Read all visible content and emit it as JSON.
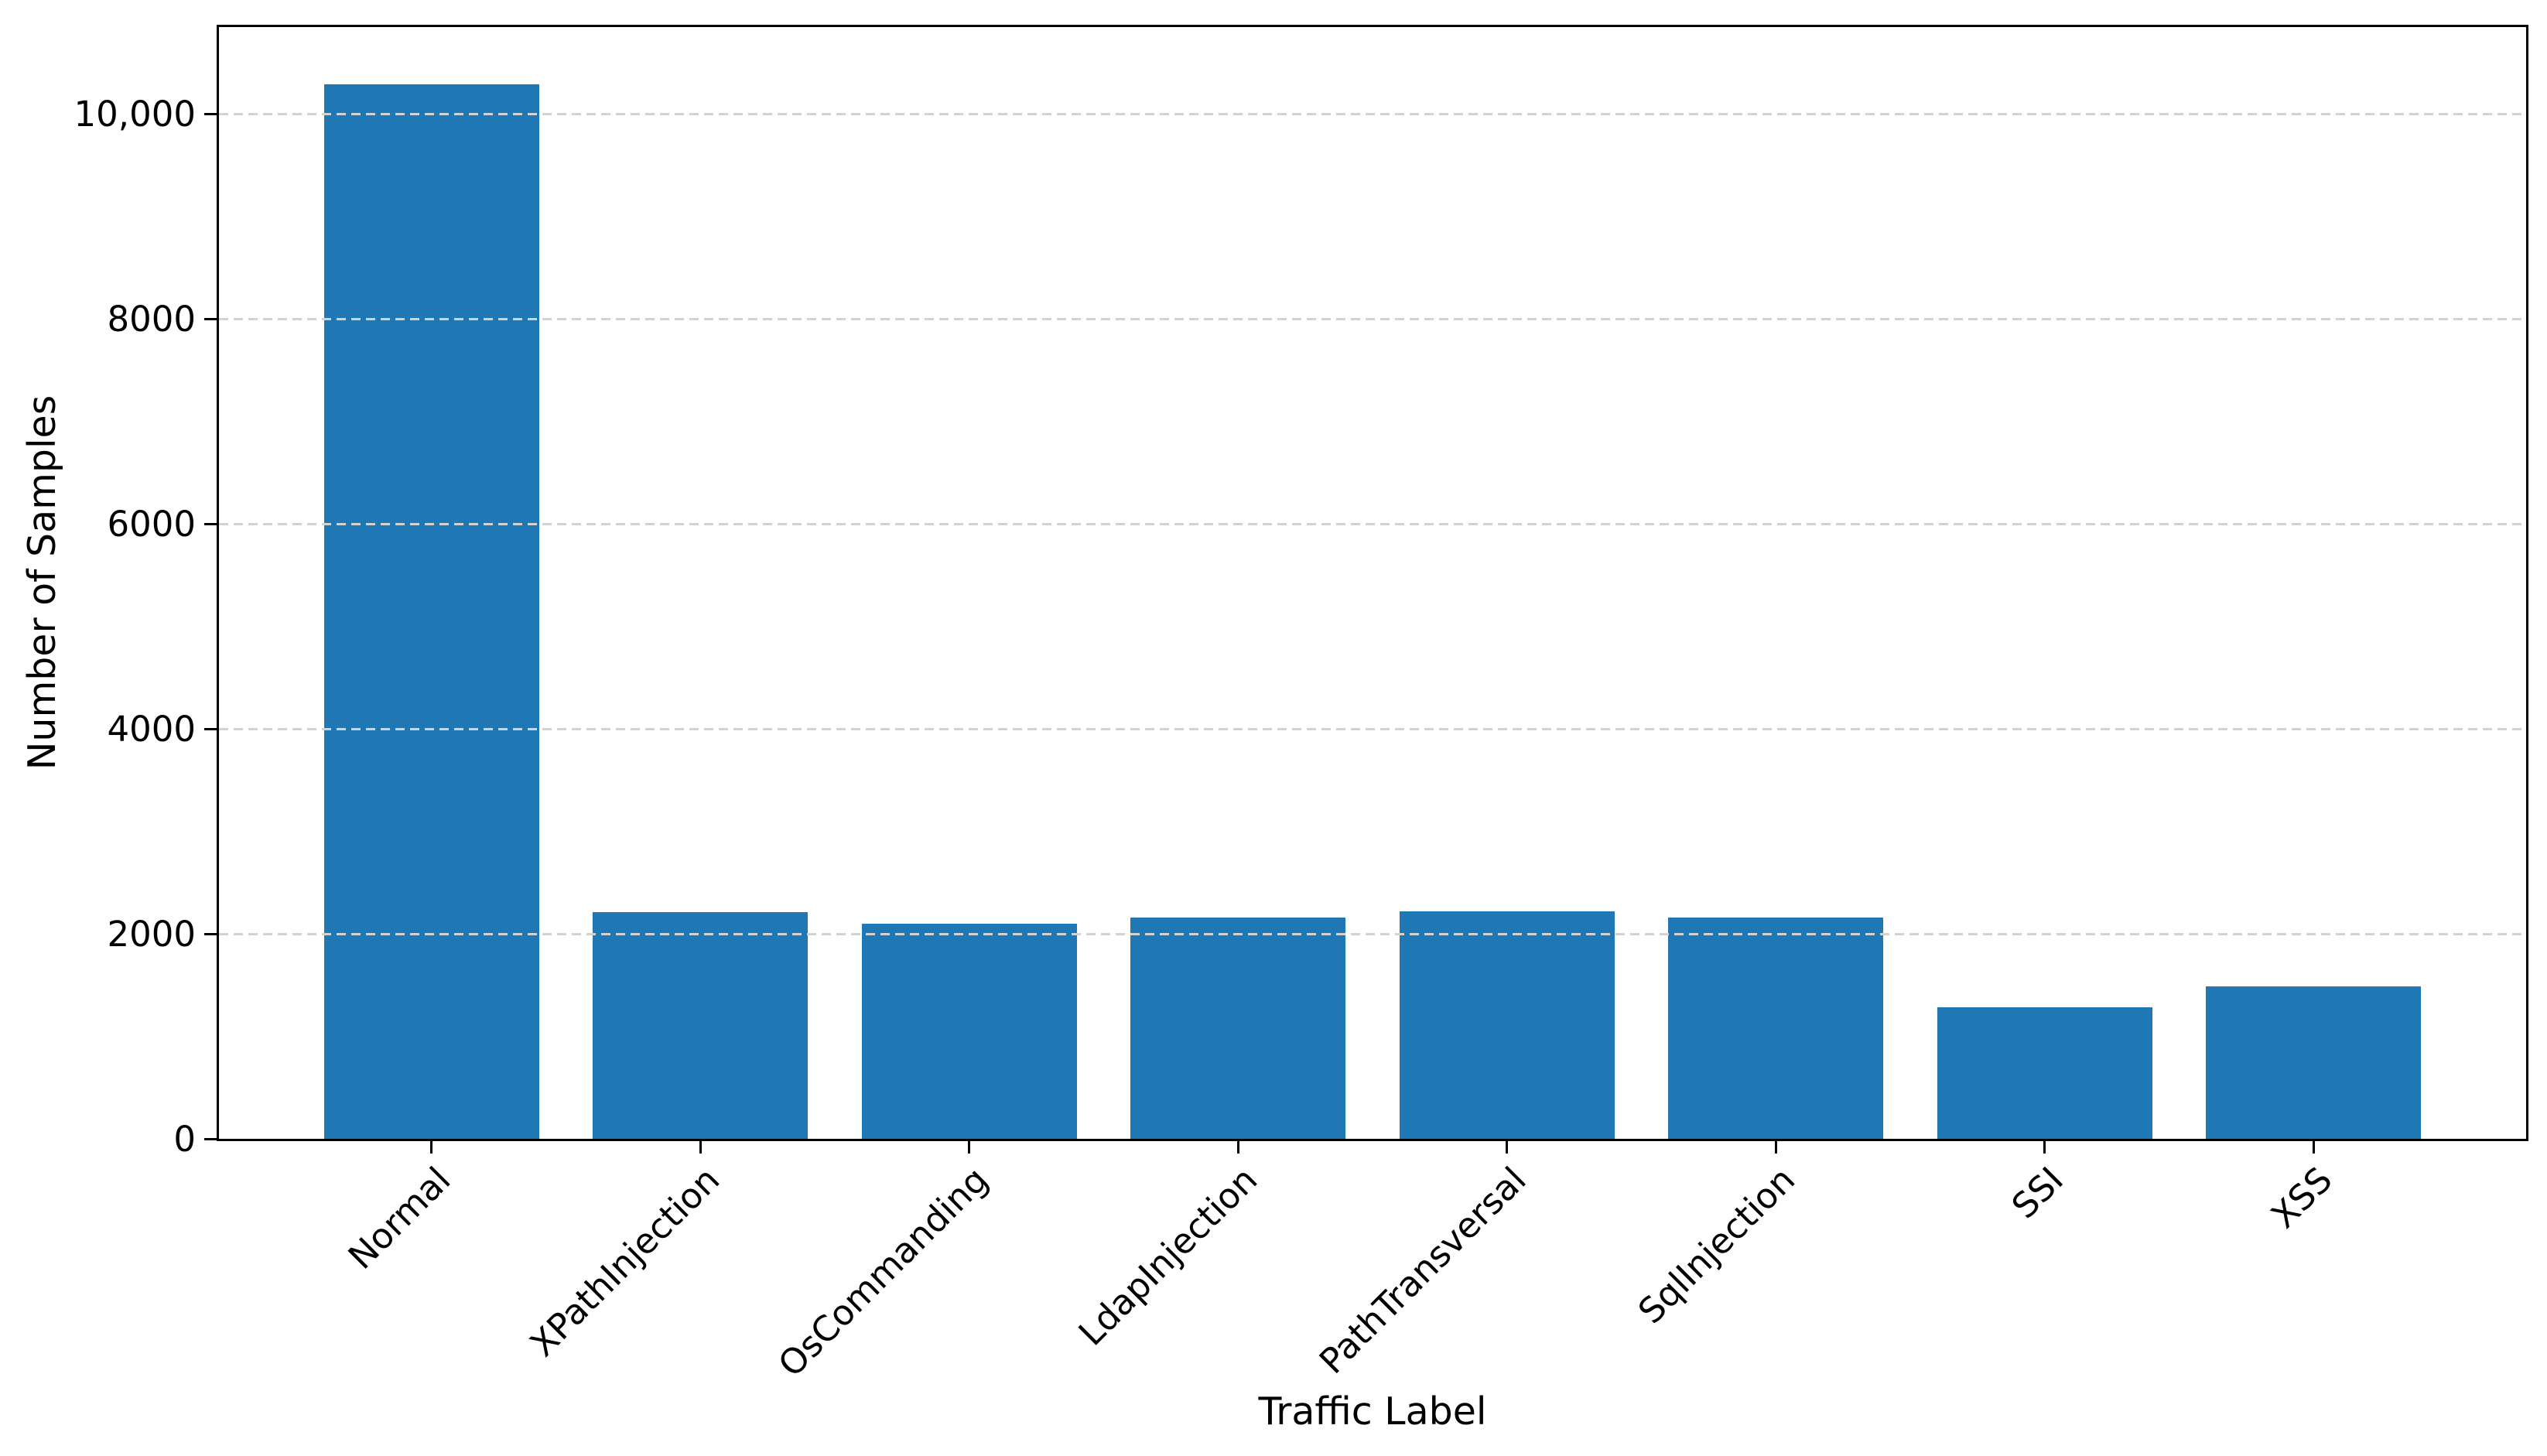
{
  "chart_data": {
    "type": "bar",
    "title": "",
    "xlabel": "Traffic Label",
    "ylabel": "Number of Samples",
    "categories": [
      "Normal",
      "XPathInjection",
      "OsCommanding",
      "LdapInjection",
      "PathTransversal",
      "SqlInjection",
      "SSI",
      "XSS"
    ],
    "values": [
      10290,
      2210,
      2100,
      2160,
      2220,
      2160,
      1280,
      1490
    ],
    "yticks": [
      {
        "value": 0,
        "label": "0"
      },
      {
        "value": 2000,
        "label": "2000"
      },
      {
        "value": 4000,
        "label": "4000"
      },
      {
        "value": 6000,
        "label": "6000"
      },
      {
        "value": 8000,
        "label": "8000"
      },
      {
        "value": 10000,
        "label": "10,000"
      }
    ],
    "ylim": [
      0,
      10850
    ],
    "bar_color": "#1f77b4",
    "grid": {
      "axis": "y",
      "style": "dashed",
      "color": "#d2d2d2",
      "over_bars": true
    },
    "spine_color": "#000000",
    "background_color": "#ffffff",
    "legend": "none",
    "x_tick_rotation": 45
  }
}
